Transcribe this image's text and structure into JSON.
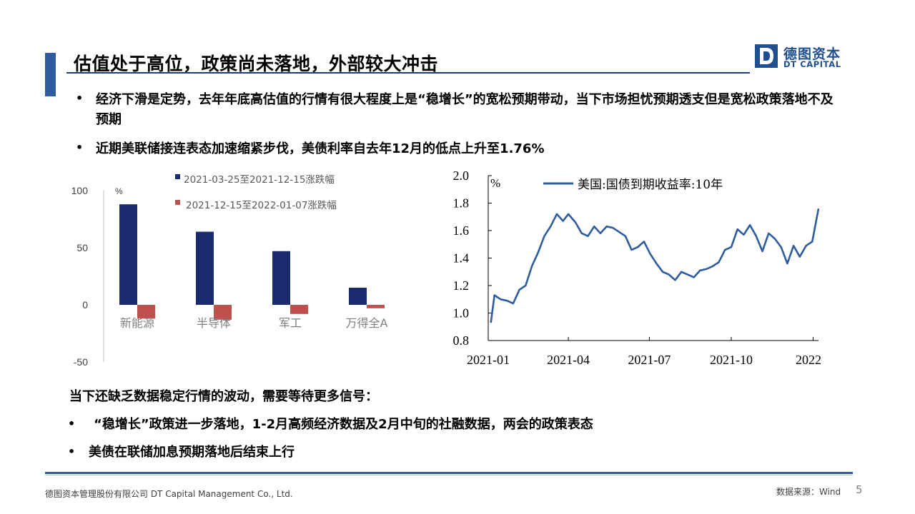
{
  "header": {
    "title": "估值处于高位，政策尚未落地，外部较大冲击",
    "logo_cn": "德图资本",
    "logo_en": "DT CAPITAL"
  },
  "bullets_top": [
    "经济下滑是定势，去年年底高估值的行情有很大程度上是“稳增长”的宽松预期带动，当下市场担忧预期透支但是宽松政策落地不及预期",
    "近期美联储接连表态加速缩紧步伐，美债利率自去年12月的低点上升至1.76%"
  ],
  "section_heading": "当下还缺乏数据稳定行情的波动，需要等待更多信号：",
  "bullets_bottom": [
    "“稳增长”政策进一步落地，1-2月高频经济数据及2月中旬的社融数据，两会的政策表态",
    "美债在联储加息预期落地后结束上行"
  ],
  "bullet_symbol": "•",
  "footer": {
    "company": "德图资本管理股份有限公司 DT Capital Management Co., Ltd.",
    "source": "数据来源：Wind",
    "page": "5"
  },
  "colors": {
    "accent": "#2e5c9e",
    "bar_series_1": "#1a2a6c",
    "bar_series_2": "#c0504d",
    "line": "#2e5c9e"
  },
  "chart_data": [
    {
      "type": "bar",
      "ylabel_unit": "%",
      "categories": [
        "新能源",
        "半导体",
        "军工",
        "万得全A"
      ],
      "series": [
        {
          "name": "2021-03-25至2021-12-15涨跌幅",
          "values": [
            88,
            64,
            47,
            15
          ]
        },
        {
          "name": "2021-12-15至2022-01-07涨跌幅",
          "values": [
            -12,
            -13,
            -8,
            -3
          ]
        }
      ],
      "ylim": [
        -50,
        100
      ],
      "yticks": [
        100,
        50,
        0,
        -50
      ],
      "legend_position": "top",
      "grid": false
    },
    {
      "type": "line",
      "legend": "美国:国债到期收益率:10年",
      "ylabel_unit": "%",
      "ylim": [
        0.8,
        2.0
      ],
      "yticks": [
        "2.0",
        "1.8",
        "1.6",
        "1.4",
        "1.2",
        "1.0",
        "0.8"
      ],
      "xticks": [
        "2021-01",
        "2021-04",
        "2021-07",
        "2021-10",
        "2022"
      ],
      "xlim": [
        "2021-01-01",
        "2022-01-07"
      ],
      "grid": false,
      "series": [
        {
          "x": [
            "2021-01-04",
            "2021-01-08",
            "2021-01-15",
            "2021-01-22",
            "2021-01-29",
            "2021-02-05",
            "2021-02-12",
            "2021-02-19",
            "2021-02-26",
            "2021-03-05",
            "2021-03-12",
            "2021-03-19",
            "2021-03-26",
            "2021-04-01",
            "2021-04-09",
            "2021-04-16",
            "2021-04-23",
            "2021-04-30",
            "2021-05-07",
            "2021-05-14",
            "2021-05-21",
            "2021-05-28",
            "2021-06-04",
            "2021-06-11",
            "2021-06-18",
            "2021-06-25",
            "2021-07-02",
            "2021-07-09",
            "2021-07-16",
            "2021-07-23",
            "2021-07-30",
            "2021-08-06",
            "2021-08-13",
            "2021-08-20",
            "2021-08-27",
            "2021-09-03",
            "2021-09-10",
            "2021-09-17",
            "2021-09-24",
            "2021-10-01",
            "2021-10-08",
            "2021-10-15",
            "2021-10-22",
            "2021-10-29",
            "2021-11-05",
            "2021-11-12",
            "2021-11-19",
            "2021-11-26",
            "2021-12-03",
            "2021-12-10",
            "2021-12-17",
            "2021-12-24",
            "2021-12-31",
            "2022-01-07"
          ],
          "values": [
            0.93,
            1.13,
            1.1,
            1.09,
            1.07,
            1.17,
            1.2,
            1.34,
            1.44,
            1.56,
            1.63,
            1.72,
            1.67,
            1.72,
            1.66,
            1.58,
            1.56,
            1.63,
            1.58,
            1.63,
            1.62,
            1.59,
            1.56,
            1.46,
            1.48,
            1.52,
            1.43,
            1.36,
            1.3,
            1.28,
            1.24,
            1.3,
            1.28,
            1.26,
            1.31,
            1.32,
            1.34,
            1.37,
            1.46,
            1.48,
            1.61,
            1.57,
            1.64,
            1.56,
            1.45,
            1.58,
            1.54,
            1.48,
            1.36,
            1.49,
            1.41,
            1.49,
            1.52,
            1.76
          ]
        }
      ]
    }
  ]
}
